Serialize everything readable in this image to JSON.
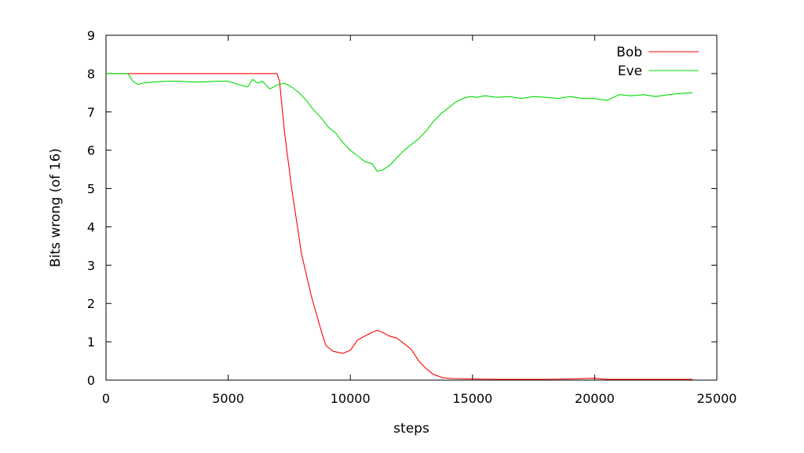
{
  "chart_data": {
    "type": "line",
    "title": "",
    "xlabel": "steps",
    "ylabel": "Bits wrong (of 16)",
    "xlim": [
      0,
      25000
    ],
    "ylim": [
      0,
      9
    ],
    "x_ticks": [
      "0",
      "5000",
      "10000",
      "15000",
      "20000",
      "25000"
    ],
    "y_ticks": [
      "0",
      "1",
      "2",
      "3",
      "4",
      "5",
      "6",
      "7",
      "8",
      "9"
    ],
    "grid": false,
    "legend_position": "top-right",
    "series": [
      {
        "name": "Bob",
        "color": "#ff0000",
        "x": [
          0,
          1000,
          2000,
          3000,
          4000,
          5000,
          6000,
          6500,
          7000,
          7100,
          7300,
          7600,
          8000,
          8400,
          8800,
          9000,
          9300,
          9700,
          10000,
          10300,
          10600,
          10900,
          11100,
          11300,
          11600,
          11900,
          12200,
          12500,
          12800,
          13100,
          13400,
          13800,
          14200,
          15000,
          16000,
          17000,
          18000,
          19000,
          20000,
          20500,
          21000,
          22000,
          23000,
          24000
        ],
        "y": [
          8.0,
          8.0,
          8.0,
          8.0,
          8.0,
          8.0,
          8.0,
          8.0,
          8.0,
          7.8,
          6.5,
          5.0,
          3.3,
          2.2,
          1.3,
          0.9,
          0.75,
          0.7,
          0.78,
          1.05,
          1.15,
          1.25,
          1.3,
          1.25,
          1.15,
          1.1,
          0.95,
          0.8,
          0.5,
          0.3,
          0.15,
          0.06,
          0.04,
          0.03,
          0.02,
          0.02,
          0.02,
          0.03,
          0.05,
          0.02,
          0.02,
          0.02,
          0.02,
          0.02
        ]
      },
      {
        "name": "Eve",
        "color": "#00dd00",
        "x": [
          0,
          500,
          900,
          1100,
          1300,
          1500,
          2000,
          2500,
          3000,
          3500,
          4000,
          4500,
          5000,
          5500,
          5800,
          6000,
          6200,
          6400,
          6700,
          7000,
          7300,
          7600,
          7900,
          8200,
          8500,
          8800,
          9100,
          9400,
          9700,
          10000,
          10300,
          10600,
          10900,
          11100,
          11300,
          11600,
          11900,
          12200,
          12500,
          12800,
          13100,
          13400,
          13700,
          14000,
          14300,
          14600,
          14900,
          15200,
          15500,
          16000,
          16500,
          17000,
          17500,
          18000,
          18500,
          19000,
          19500,
          20000,
          20500,
          21000,
          21500,
          22000,
          22500,
          23000,
          23500,
          24000
        ],
        "y": [
          8.0,
          8.0,
          8.0,
          7.8,
          7.72,
          7.75,
          7.78,
          7.8,
          7.8,
          7.78,
          7.78,
          7.8,
          7.8,
          7.7,
          7.65,
          7.85,
          7.75,
          7.8,
          7.6,
          7.7,
          7.75,
          7.65,
          7.5,
          7.3,
          7.05,
          6.85,
          6.6,
          6.45,
          6.2,
          6.0,
          5.85,
          5.7,
          5.65,
          5.45,
          5.48,
          5.6,
          5.8,
          6.0,
          6.15,
          6.3,
          6.5,
          6.75,
          6.95,
          7.1,
          7.25,
          7.35,
          7.4,
          7.38,
          7.42,
          7.38,
          7.4,
          7.35,
          7.4,
          7.38,
          7.35,
          7.4,
          7.35,
          7.35,
          7.3,
          7.45,
          7.42,
          7.45,
          7.4,
          7.45,
          7.48,
          7.5
        ]
      }
    ]
  }
}
